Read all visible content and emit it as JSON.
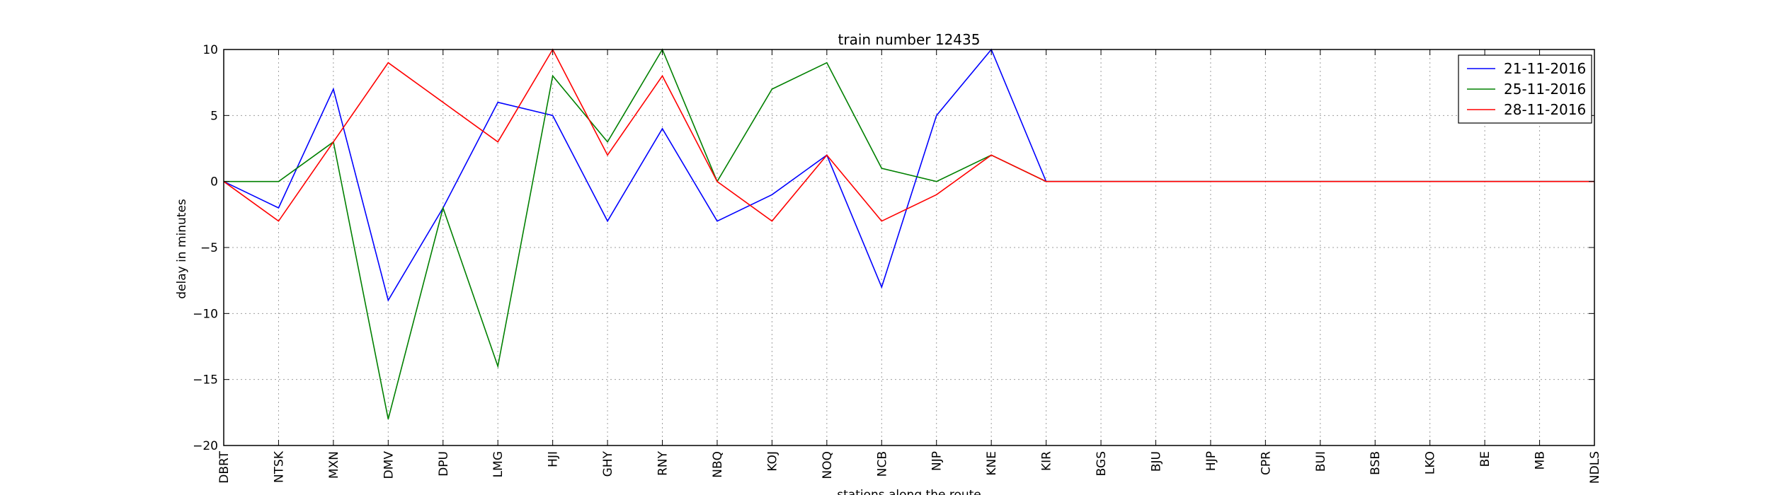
{
  "chart_data": {
    "type": "line",
    "title": "train number 12435",
    "xlabel": "stations along the route",
    "ylabel": "delay in minutes",
    "ylim": [
      -20,
      10
    ],
    "yticks": [
      -20,
      -15,
      -10,
      -5,
      0,
      5,
      10
    ],
    "ytick_labels": [
      "−20",
      "−15",
      "−10",
      "−5",
      "0",
      "5",
      "10"
    ],
    "grid": true,
    "legend_position": "top-right",
    "categories": [
      "DBRT",
      "NTSK",
      "MXN",
      "DMV",
      "DPU",
      "LMG",
      "HJI",
      "GHY",
      "RNY",
      "NBQ",
      "KOJ",
      "NOQ",
      "NCB",
      "NJP",
      "KNE",
      "KIR",
      "BGS",
      "BJU",
      "HJP",
      "CPR",
      "BUI",
      "BSB",
      "LKO",
      "BE",
      "MB",
      "NDLS"
    ],
    "series": [
      {
        "name": "21-11-2016",
        "color": "#0000ff",
        "values": [
          0,
          -2,
          7,
          -9,
          -2,
          6,
          5,
          -3,
          4,
          -3,
          -1,
          2,
          -8,
          5,
          10,
          0,
          0,
          0,
          0,
          0,
          0,
          0,
          0,
          0,
          0,
          0
        ]
      },
      {
        "name": "25-11-2016",
        "color": "#008000",
        "values": [
          0,
          0,
          3,
          -18,
          -2,
          -14,
          8,
          3,
          10,
          0,
          7,
          9,
          1,
          0,
          2,
          0,
          0,
          0,
          0,
          0,
          0,
          0,
          0,
          0,
          0,
          0
        ]
      },
      {
        "name": "28-11-2016",
        "color": "#ff0000",
        "values": [
          0,
          -3,
          3,
          9,
          6,
          3,
          10,
          2,
          8,
          0,
          -3,
          2,
          -3,
          -1,
          2,
          0,
          0,
          0,
          0,
          0,
          0,
          0,
          0,
          0,
          0,
          0
        ]
      }
    ]
  }
}
